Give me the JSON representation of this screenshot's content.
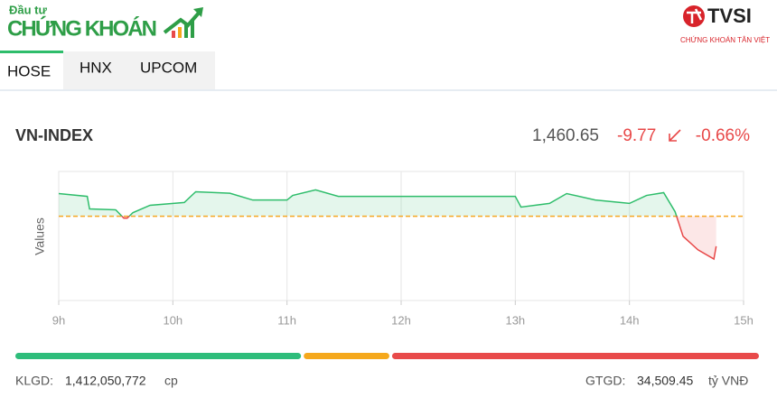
{
  "header": {
    "logo_top": "Đầu tư",
    "logo_main": "CHỨNG KHOÁN",
    "brand": "TVSI",
    "brand_sub": "CHỨNG KHOÁN TÂN VIỆT"
  },
  "tabs": [
    "HOSE",
    "HNX",
    "UPCOM"
  ],
  "index": {
    "name": "VN-INDEX",
    "price": "1,460.65",
    "change": "-9.77",
    "change_pct": "-0.66%"
  },
  "chart_data": {
    "type": "line",
    "ylabel": "Values",
    "x": [
      9.0,
      9.25,
      9.27,
      9.5,
      9.57,
      9.6,
      9.65,
      9.8,
      10.1,
      10.2,
      10.5,
      10.7,
      11.0,
      11.05,
      11.25,
      11.45,
      12.0,
      13.0,
      13.05,
      13.3,
      13.45,
      13.7,
      14.0,
      14.15,
      14.3,
      14.4,
      14.47,
      14.6,
      14.74,
      14.76
    ],
    "values": [
      1477.8,
      1476.9,
      1472.8,
      1472.5,
      1469.8,
      1469.8,
      1471.6,
      1474.0,
      1474.9,
      1478.4,
      1477.9,
      1475.7,
      1475.7,
      1477.2,
      1479.0,
      1476.9,
      1476.9,
      1476.9,
      1473.4,
      1474.6,
      1477.8,
      1475.7,
      1474.6,
      1477.2,
      1478.1,
      1471.9,
      1463.9,
      1459.5,
      1456.5,
      1460.65
    ],
    "reference": 1470.42,
    "up_color": "#2ebd6b",
    "down_color": "#e84848",
    "reference_color": "#f5a623",
    "xlim": [
      9,
      15
    ],
    "ylim": [
      1443,
      1485
    ],
    "xticks": [
      {
        "value": 9,
        "label": "9h"
      },
      {
        "value": 10,
        "label": "10h"
      },
      {
        "value": 11,
        "label": "11h"
      },
      {
        "value": 12,
        "label": "12h"
      },
      {
        "value": 13,
        "label": "13h"
      },
      {
        "value": 14,
        "label": "14h"
      },
      {
        "value": 15,
        "label": "15h"
      }
    ],
    "grid": true
  },
  "market_breadth": {
    "values": [
      38.7,
      11.6,
      49.7
    ],
    "colors": [
      "#2ebd7b",
      "#f5a81c",
      "#e84a4a"
    ]
  },
  "footer": {
    "volume_label": "KLGD:",
    "volume": "1,412,050,772",
    "volume_unit": "cp",
    "value_label": "GTGD:",
    "value": "34,509.45",
    "value_unit": "tỷ VNĐ"
  }
}
